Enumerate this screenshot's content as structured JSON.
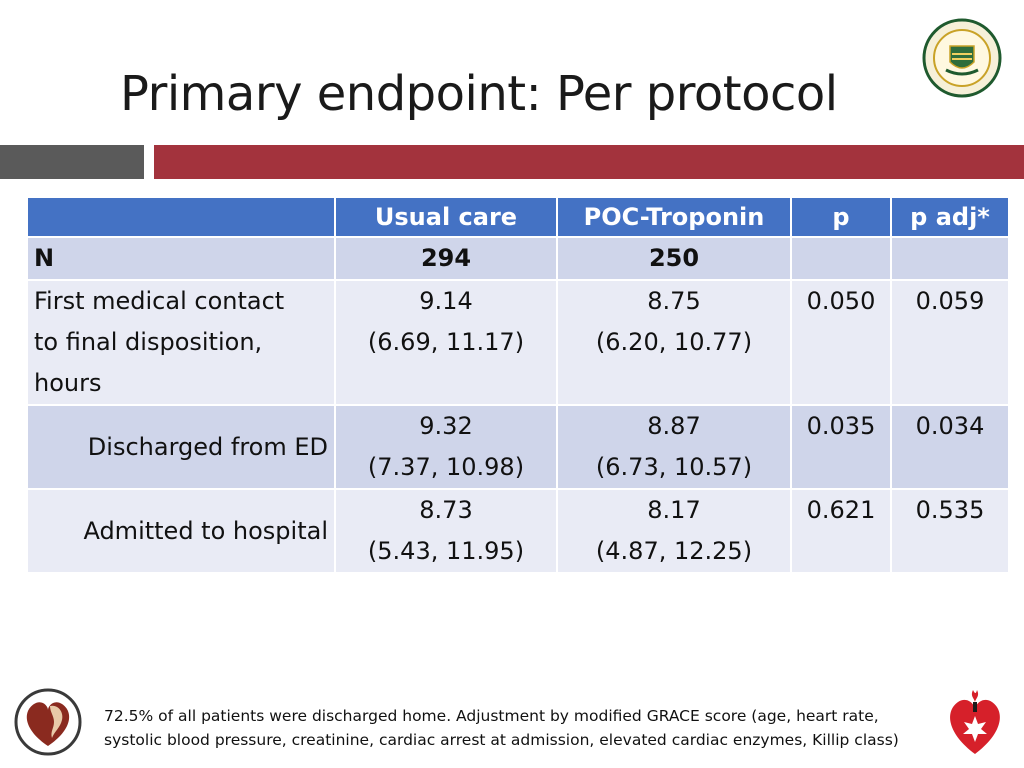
{
  "slide": {
    "title": "Primary endpoint: Per protocol"
  },
  "table": {
    "headers": [
      "",
      "Usual care",
      "POC-Troponin",
      "p",
      "p adj*"
    ],
    "rows": [
      {
        "label": "N",
        "usual": "294",
        "poc": "250",
        "p": "",
        "padj": ""
      },
      {
        "label": "First medical contact\nto final disposition,\nhours",
        "usual": "9.14\n(6.69, 11.17)",
        "poc": "8.75\n(6.20, 10.77)",
        "p": "0.050",
        "padj": "0.059"
      },
      {
        "label": "Discharged from ED",
        "usual": "9.32\n(7.37, 10.98)",
        "poc": "8.87\n(6.73, 10.57)",
        "p": "0.035",
        "padj": "0.034"
      },
      {
        "label": "Admitted to hospital",
        "usual": "8.73\n(5.43, 11.95)",
        "poc": "8.17\n(4.87, 12.25)",
        "p": "0.621",
        "padj": "0.535"
      }
    ]
  },
  "footnote": {
    "text": "72.5% of all patients were discharged home. Adjustment by modified GRACE score (age, heart rate, systolic blood pressure, creatinine, cardiac arrest at admission, elevated cardiac enzymes, Killip class)"
  },
  "logos": {
    "seal_text": "UNIVERSITY OF ALBERTA",
    "seal_motto": "QUAECUMQUE VERA",
    "left_logo": "heart-profile-logo-icon",
    "right_logo": "heart-torch-logo-icon"
  },
  "colors": {
    "header_blue": "#4472c4",
    "row_dark": "#cfd5ea",
    "row_light": "#e9ebf5",
    "accent_red": "#a3333d",
    "accent_gray": "#5a5a5a"
  }
}
